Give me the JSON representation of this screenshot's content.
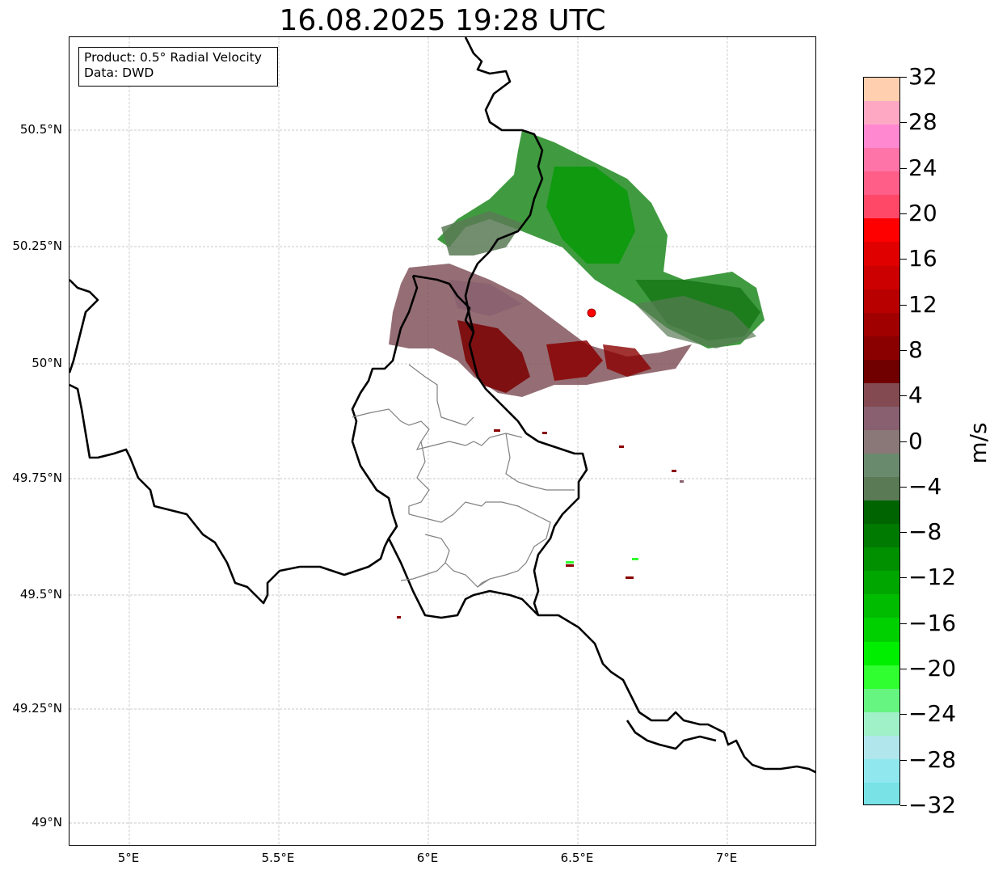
{
  "title": "16.08.2025 19:28 UTC",
  "info_box": {
    "product": "Product: 0.5° Radial Velocity",
    "data_source": "Data: DWD"
  },
  "map": {
    "lon_range": [
      4.8,
      7.3
    ],
    "lat_range": [
      48.95,
      50.7
    ],
    "x_ticks": [
      {
        "value": 5.0,
        "label": "5°E"
      },
      {
        "value": 5.5,
        "label": "5.5°E"
      },
      {
        "value": 6.0,
        "label": "6°E"
      },
      {
        "value": 6.5,
        "label": "6.5°E"
      },
      {
        "value": 7.0,
        "label": "7°E"
      }
    ],
    "y_ticks": [
      {
        "value": 50.5,
        "label": "50.5°N"
      },
      {
        "value": 50.25,
        "label": "50.25°N"
      },
      {
        "value": 50.0,
        "label": "50°N"
      },
      {
        "value": 49.75,
        "label": "49.75°N"
      },
      {
        "value": 49.5,
        "label": "49.5°N"
      },
      {
        "value": 49.25,
        "label": "49.25°N"
      },
      {
        "value": 49.0,
        "label": "49°N"
      }
    ],
    "gridlines": true,
    "radar_site": {
      "lon": 6.55,
      "lat": 50.11,
      "color": "#ff0000"
    },
    "colors": {
      "border": "#000000",
      "admin_border": "#808080",
      "grid": "#b0b0b0"
    }
  },
  "colorbar": {
    "unit": "m/s",
    "min": -32,
    "max": 32,
    "tick_values": [
      -32,
      -28,
      -24,
      -20,
      -16,
      -12,
      -8,
      -4,
      0,
      4,
      8,
      12,
      16,
      20,
      24,
      28,
      32
    ],
    "tick_labels": [
      "−32",
      "−28",
      "−24",
      "−20",
      "−16",
      "−12",
      "−8",
      "−4",
      "0",
      "4",
      "8",
      "12",
      "16",
      "20",
      "24",
      "28",
      "32"
    ],
    "segments_top_to_bottom": [
      "#ffcfb0",
      "#ffa8c4",
      "#ff88d0",
      "#ff74a8",
      "#ff5e88",
      "#ff4868",
      "#ff0000",
      "#e00000",
      "#cc0000",
      "#b80000",
      "#a00000",
      "#8a0000",
      "#700000",
      "#844a52",
      "#886070",
      "#8a7878",
      "#6a8a6e",
      "#5a7a56",
      "#006400",
      "#007a00",
      "#009000",
      "#00a600",
      "#00bc00",
      "#00d000",
      "#00ee00",
      "#30ff30",
      "#66f580",
      "#a0f0c8",
      "#b0e6ec",
      "#90e8ee",
      "#78e2e6"
    ]
  }
}
